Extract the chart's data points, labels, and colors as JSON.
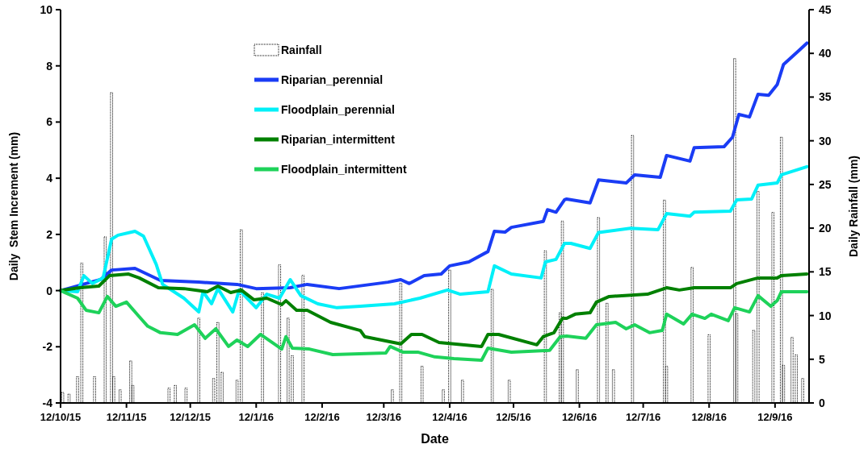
{
  "chart_data": {
    "type": "line",
    "xlabel": "Date",
    "ylabel": "Daily  Stem Increment (mm)",
    "y2label": "Daily Rainfall (mm)",
    "xlim": [
      "2015-10-12",
      "2016-09-28"
    ],
    "xticks": [
      {
        "value": "2015-10-12",
        "label": "12/10/15"
      },
      {
        "value": "2015-11-12",
        "label": "12/11/15"
      },
      {
        "value": "2015-12-12",
        "label": "12/12/15"
      },
      {
        "value": "2016-01-12",
        "label": "12/1/16"
      },
      {
        "value": "2016-02-12",
        "label": "12/2/16"
      },
      {
        "value": "2016-03-12",
        "label": "12/3/16"
      },
      {
        "value": "2016-04-12",
        "label": "12/4/16"
      },
      {
        "value": "2016-05-12",
        "label": "12/5/16"
      },
      {
        "value": "2016-06-12",
        "label": "12/6/16"
      },
      {
        "value": "2016-07-12",
        "label": "12/7/16"
      },
      {
        "value": "2016-08-12",
        "label": "12/8/16"
      },
      {
        "value": "2016-09-12",
        "label": "12/9/16"
      }
    ],
    "ylim": [
      -4,
      10
    ],
    "yticks": [
      -4,
      -2,
      0,
      2,
      4,
      6,
      8,
      10
    ],
    "y2lim": [
      0,
      45
    ],
    "y2ticks": [
      0,
      5,
      10,
      15,
      20,
      25,
      30,
      35,
      40,
      45
    ],
    "legend": "top",
    "grid": false,
    "line_style": "solid",
    "marker": "none",
    "series": [
      {
        "name": "Rainfall",
        "type": "bar",
        "axis": "y2",
        "color": "#000000",
        "x": [
          "2015-10-13",
          "2015-10-16",
          "2015-10-20",
          "2015-10-22",
          "2015-10-28",
          "2015-11-02",
          "2015-11-05",
          "2015-11-06",
          "2015-11-09",
          "2015-11-14",
          "2015-11-15",
          "2015-12-02",
          "2015-12-05",
          "2015-12-10",
          "2015-12-16",
          "2015-12-23",
          "2015-12-25",
          "2015-12-27",
          "2016-01-03",
          "2016-01-05",
          "2016-01-15",
          "2016-01-23",
          "2016-01-27",
          "2016-01-29",
          "2016-02-03",
          "2016-03-16",
          "2016-03-20",
          "2016-03-30",
          "2016-04-09",
          "2016-04-12",
          "2016-04-18",
          "2016-05-02",
          "2016-05-10",
          "2016-05-27",
          "2016-06-03",
          "2016-06-04",
          "2016-06-11",
          "2016-06-21",
          "2016-06-25",
          "2016-06-28",
          "2016-07-07",
          "2016-07-22",
          "2016-07-23",
          "2016-08-04",
          "2016-08-12",
          "2016-08-24",
          "2016-08-25",
          "2016-09-02",
          "2016-09-04",
          "2016-09-11",
          "2016-09-15",
          "2016-09-16",
          "2016-09-20",
          "2016-09-22",
          "2016-09-25"
        ],
        "values": [
          1.2,
          1,
          3,
          16,
          3,
          19,
          35.5,
          3,
          1.5,
          4.8,
          2,
          1.7,
          2,
          1.7,
          9.7,
          2.8,
          9.2,
          3.5,
          2.6,
          19.8,
          12.6,
          15.8,
          9.7,
          5.4,
          14.6,
          1.5,
          13.7,
          4.2,
          1.5,
          15.2,
          2.6,
          13,
          2.6,
          17.4,
          10.3,
          20.8,
          3.8,
          21.2,
          11.4,
          3.8,
          30.6,
          23.2,
          4.2,
          15.5,
          7.8,
          39.4,
          10.2,
          8.3,
          24.2,
          21.8,
          30.4,
          4.3,
          7.5,
          5.5,
          2.8
        ]
      },
      {
        "name": "Riparian_perennial",
        "color": "#1a3cf5",
        "x": [
          "2015-10-12",
          "2015-10-31",
          "2015-11-05",
          "2015-11-16",
          "2015-11-28",
          "2015-12-16",
          "2016-01-03",
          "2016-01-12",
          "2016-01-28",
          "2016-02-05",
          "2016-02-20",
          "2016-03-14",
          "2016-03-20",
          "2016-03-24",
          "2016-03-31",
          "2016-04-08",
          "2016-04-12",
          "2016-04-21",
          "2016-04-30",
          "2016-05-03",
          "2016-05-08",
          "2016-05-11",
          "2016-05-26",
          "2016-05-28",
          "2016-06-01",
          "2016-06-05",
          "2016-06-06",
          "2016-06-17",
          "2016-06-21",
          "2016-07-04",
          "2016-07-08",
          "2016-07-20",
          "2016-07-23",
          "2016-08-03",
          "2016-08-05",
          "2016-08-19",
          "2016-08-23",
          "2016-08-26",
          "2016-08-31",
          "2016-09-04",
          "2016-09-09",
          "2016-09-13",
          "2016-09-16",
          "2016-09-23",
          "2016-09-27"
        ],
        "values": [
          0,
          0.4,
          0.73,
          0.79,
          0.36,
          0.3,
          0.22,
          0.07,
          0.1,
          0.22,
          0.07,
          0.3,
          0.39,
          0.25,
          0.53,
          0.59,
          0.88,
          1.02,
          1.39,
          2.11,
          2.08,
          2.25,
          2.46,
          2.88,
          2.79,
          3.23,
          3.26,
          3.12,
          3.94,
          3.83,
          4.12,
          4.03,
          4.81,
          4.61,
          5.09,
          5.12,
          5.46,
          6.27,
          6.18,
          6.99,
          6.95,
          7.33,
          8.05,
          8.53,
          8.81
        ]
      },
      {
        "name": "Floodplain_perennial",
        "color": "#00f0f8",
        "x": [
          "2015-10-12",
          "2015-10-20",
          "2015-10-23",
          "2015-10-27",
          "2015-11-01",
          "2015-11-05",
          "2015-11-08",
          "2015-11-16",
          "2015-11-20",
          "2015-11-26",
          "2015-11-29",
          "2015-12-09",
          "2015-12-16",
          "2015-12-18",
          "2015-12-22",
          "2015-12-25",
          "2016-01-01",
          "2016-01-04",
          "2016-01-12",
          "2016-01-17",
          "2016-01-23",
          "2016-01-28",
          "2016-02-02",
          "2016-02-10",
          "2016-02-19",
          "2016-03-01",
          "2016-03-17",
          "2016-03-29",
          "2016-04-11",
          "2016-04-17",
          "2016-04-30",
          "2016-05-03",
          "2016-05-11",
          "2016-05-25",
          "2016-05-27",
          "2016-06-01",
          "2016-06-05",
          "2016-06-08",
          "2016-06-17",
          "2016-06-21",
          "2016-07-06",
          "2016-07-19",
          "2016-07-23",
          "2016-08-03",
          "2016-08-05",
          "2016-08-22",
          "2016-08-25",
          "2016-09-01",
          "2016-09-04",
          "2016-09-13",
          "2016-09-15",
          "2016-09-27"
        ],
        "values": [
          0,
          -0.04,
          0.53,
          0.25,
          0.45,
          1.83,
          1.97,
          2.11,
          1.94,
          0.93,
          0.22,
          -0.27,
          -0.76,
          -0.04,
          -0.47,
          0.07,
          -0.76,
          0.02,
          -0.61,
          -0.13,
          -0.27,
          0.39,
          -0.18,
          -0.47,
          -0.61,
          -0.56,
          -0.47,
          -0.27,
          0.02,
          -0.13,
          -0.04,
          0.88,
          0.59,
          0.45,
          1.02,
          1.11,
          1.68,
          1.68,
          1.5,
          2.07,
          2.22,
          2.17,
          2.74,
          2.65,
          2.79,
          2.83,
          3.23,
          3.26,
          3.75,
          3.83,
          4.12,
          4.41
        ]
      },
      {
        "name": "Riparian_intermittent",
        "color": "#008000",
        "x": [
          "2015-10-12",
          "2015-10-21",
          "2015-10-30",
          "2015-11-04",
          "2015-11-13",
          "2015-11-18",
          "2015-11-27",
          "2015-12-09",
          "2015-12-20",
          "2015-12-25",
          "2015-12-31",
          "2016-01-05",
          "2016-01-11",
          "2016-01-17",
          "2016-01-24",
          "2016-01-26",
          "2016-01-31",
          "2016-02-05",
          "2016-02-16",
          "2016-03-01",
          "2016-03-03",
          "2016-03-20",
          "2016-03-25",
          "2016-03-30",
          "2016-04-07",
          "2016-04-27",
          "2016-04-30",
          "2016-05-05",
          "2016-05-23",
          "2016-05-26",
          "2016-05-31",
          "2016-06-04",
          "2016-06-06",
          "2016-06-10",
          "2016-06-17",
          "2016-06-20",
          "2016-06-26",
          "2016-07-14",
          "2016-07-23",
          "2016-07-29",
          "2016-08-05",
          "2016-08-22",
          "2016-08-25",
          "2016-09-04",
          "2016-09-13",
          "2016-09-15",
          "2016-09-27"
        ],
        "values": [
          0,
          0.1,
          0.16,
          0.53,
          0.59,
          0.45,
          0.1,
          0.07,
          -0.04,
          0.16,
          -0.07,
          0.02,
          -0.33,
          -0.27,
          -0.5,
          -0.36,
          -0.7,
          -0.7,
          -1.13,
          -1.42,
          -1.64,
          -1.9,
          -1.56,
          -1.56,
          -1.85,
          -1.99,
          -1.56,
          -1.56,
          -1.93,
          -1.64,
          -1.5,
          -0.99,
          -0.99,
          -0.84,
          -0.79,
          -0.41,
          -0.21,
          -0.13,
          0.1,
          0.02,
          0.1,
          0.1,
          0.25,
          0.45,
          0.45,
          0.53,
          0.59
        ]
      },
      {
        "name": "Floodplain_intermittent",
        "color": "#1ed25a",
        "x": [
          "2015-10-12",
          "2015-10-20",
          "2015-10-24",
          "2015-10-30",
          "2015-11-03",
          "2015-11-07",
          "2015-11-12",
          "2015-11-18",
          "2015-11-22",
          "2015-11-28",
          "2015-12-06",
          "2015-12-14",
          "2015-12-19",
          "2015-12-24",
          "2015-12-30",
          "2016-01-03",
          "2016-01-08",
          "2016-01-14",
          "2016-01-24",
          "2016-01-26",
          "2016-01-29",
          "2016-02-06",
          "2016-02-17",
          "2016-03-13",
          "2016-03-15",
          "2016-03-21",
          "2016-03-28",
          "2016-04-05",
          "2016-04-14",
          "2016-04-27",
          "2016-04-30",
          "2016-05-11",
          "2016-05-29",
          "2016-06-03",
          "2016-06-06",
          "2016-06-15",
          "2016-06-20",
          "2016-06-29",
          "2016-07-04",
          "2016-07-08",
          "2016-07-15",
          "2016-07-21",
          "2016-07-23",
          "2016-07-31",
          "2016-08-04",
          "2016-08-10",
          "2016-08-13",
          "2016-08-21",
          "2016-08-24",
          "2016-08-31",
          "2016-09-04",
          "2016-09-10",
          "2016-09-13",
          "2016-09-15",
          "2016-09-27"
        ],
        "values": [
          0,
          -0.27,
          -0.7,
          -0.79,
          -0.21,
          -0.56,
          -0.41,
          -0.93,
          -1.27,
          -1.5,
          -1.56,
          -1.22,
          -1.7,
          -1.36,
          -1.99,
          -1.76,
          -1.99,
          -1.56,
          -2.08,
          -1.64,
          -2.05,
          -2.08,
          -2.28,
          -2.22,
          -1.99,
          -2.19,
          -2.19,
          -2.36,
          -2.42,
          -2.48,
          -2.05,
          -2.19,
          -2.13,
          -1.64,
          -1.62,
          -1.7,
          -1.22,
          -1.13,
          -1.36,
          -1.22,
          -1.5,
          -1.42,
          -0.84,
          -1.19,
          -0.84,
          -0.99,
          -0.84,
          -1.07,
          -0.61,
          -0.76,
          -0.18,
          -0.56,
          -0.36,
          -0.04,
          -0.04
        ]
      }
    ]
  }
}
